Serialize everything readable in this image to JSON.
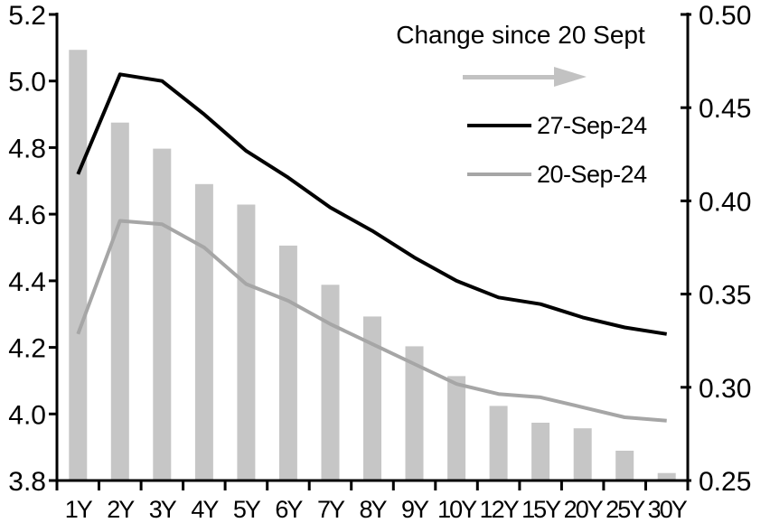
{
  "chart_data": {
    "type": "combo",
    "title": "",
    "categories": [
      "1Y",
      "2Y",
      "3Y",
      "4Y",
      "5Y",
      "6Y",
      "7Y",
      "8Y",
      "9Y",
      "10Y",
      "12Y",
      "15Y",
      "20Y",
      "25Y",
      "30Y"
    ],
    "series": [
      {
        "name": "Change since 20 Sept",
        "type": "bar",
        "axis": "right",
        "color": "#c6c6c6",
        "values": [
          0.481,
          0.442,
          0.428,
          0.409,
          0.398,
          0.376,
          0.355,
          0.338,
          0.322,
          0.306,
          0.29,
          0.281,
          0.278,
          0.266,
          0.254
        ]
      },
      {
        "name": "27-Sep-24",
        "type": "line",
        "axis": "left",
        "color": "#000000",
        "values": [
          4.72,
          5.02,
          5.0,
          4.9,
          4.79,
          4.71,
          4.62,
          4.55,
          4.47,
          4.4,
          4.35,
          4.33,
          4.29,
          4.26,
          4.24
        ]
      },
      {
        "name": "20-Sep-24",
        "type": "line",
        "axis": "left",
        "color": "#a6a6a6",
        "values": [
          4.24,
          4.58,
          4.57,
          4.5,
          4.39,
          4.34,
          4.27,
          4.21,
          4.15,
          4.09,
          4.06,
          4.05,
          4.02,
          3.99,
          3.98
        ]
      }
    ],
    "left_axis": {
      "min": 3.8,
      "max": 5.2,
      "step": 0.2,
      "tick_labels": [
        "5.2",
        "5.0",
        "4.8",
        "4.6",
        "4.4",
        "4.2",
        "4.0",
        "3.8"
      ]
    },
    "right_axis": {
      "min": 0.25,
      "max": 0.5,
      "step": 0.05,
      "tick_labels": [
        "0.50",
        "0.45",
        "0.40",
        "0.35",
        "0.30",
        "0.25"
      ]
    },
    "grid": false,
    "legend": {
      "position": "top-right",
      "title": "Change since 20 Sept",
      "arrow_direction": "right",
      "arrow_color": "#c2c2c2",
      "items": [
        "27-Sep-24",
        "20-Sep-24"
      ]
    },
    "axis_color": "#000000"
  }
}
